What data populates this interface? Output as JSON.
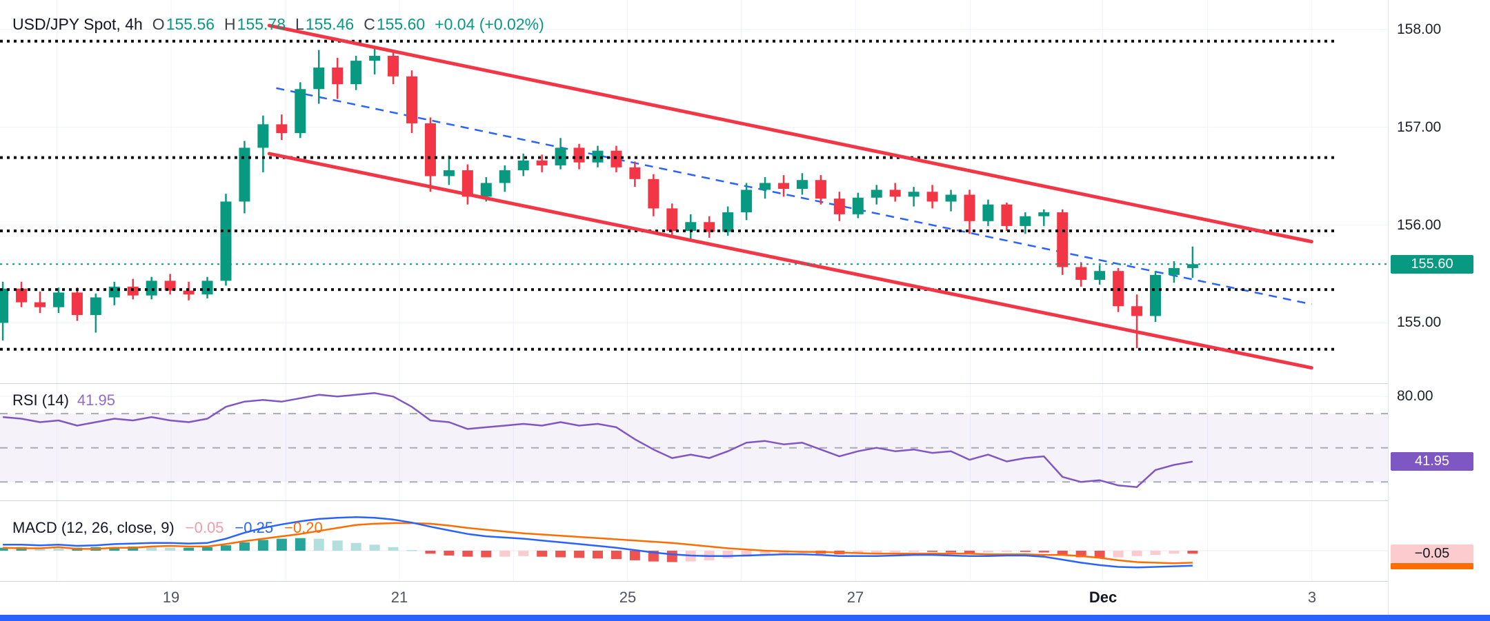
{
  "colors": {
    "up": "#089981",
    "down": "#f23645",
    "channel": "#f23645",
    "trendline": "#2962ff",
    "level_dots": "#0b0b0b",
    "current_price_line": "#089981",
    "rsi_line": "#7e57c2",
    "rsi_band_fill": "rgba(126,87,194,0.08)",
    "rsi_dash": "#a8abb5",
    "macd_line": "#2962ff",
    "signal_line": "#ff6d00",
    "hist_up_strong": "#26a69a",
    "hist_up_weak": "#b2dfdb",
    "hist_down_strong": "#ef5350",
    "hist_down_weak": "#fccbcd",
    "grid": "#f0f3fa",
    "bottom_bar": "#2962ff"
  },
  "price_panel": {
    "legend": {
      "symbol": "USD/JPY Spot, 4h",
      "o_label": "O",
      "o_value": "155.56",
      "h_label": "H",
      "h_value": "155.78",
      "l_label": "L",
      "l_value": "155.46",
      "c_label": "C",
      "c_value": "155.60",
      "change": "+0.04 (+0.02%)"
    },
    "badge": "155.60"
  },
  "rsi_panel": {
    "title": "RSI (14)",
    "value": "41.95",
    "axis_label": "80.00",
    "badge": "41.95"
  },
  "macd_panel": {
    "title": "MACD (12, 26, close, 9)",
    "hist_value": "−0.05",
    "macd_value": "−0.25",
    "signal_value": "−0.20",
    "badge": "−0.05"
  },
  "time_axis": {
    "labels": [
      {
        "text": "19",
        "xf": 0.1233
      },
      {
        "text": "21",
        "xf": 0.2877
      },
      {
        "text": "25",
        "xf": 0.4521
      },
      {
        "text": "27",
        "xf": 0.6164
      },
      {
        "text": "Dec",
        "xf": 0.7945,
        "bold": true
      },
      {
        "text": "3",
        "xf": 0.9452
      }
    ]
  },
  "chart_data": {
    "type": "candlestick",
    "symbol": "USD/JPY Spot",
    "timeframe": "4h",
    "y_axis": {
      "min": 154.39,
      "max": 158.3,
      "ticks": [
        158.0,
        157.0,
        156.0,
        155.0
      ]
    },
    "ohlc": [
      [
        155.0,
        155.42,
        154.82,
        155.35
      ],
      [
        155.35,
        155.42,
        155.16,
        155.21
      ],
      [
        155.21,
        155.32,
        155.1,
        155.16
      ],
      [
        155.16,
        155.36,
        155.1,
        155.31
      ],
      [
        155.31,
        155.36,
        155.02,
        155.08
      ],
      [
        155.08,
        155.3,
        154.9,
        155.26
      ],
      [
        155.26,
        155.42,
        155.18,
        155.37
      ],
      [
        155.37,
        155.45,
        155.24,
        155.28
      ],
      [
        155.28,
        155.47,
        155.24,
        155.43
      ],
      [
        155.43,
        155.5,
        155.29,
        155.33
      ],
      [
        155.33,
        155.42,
        155.23,
        155.29
      ],
      [
        155.29,
        155.47,
        155.25,
        155.43
      ],
      [
        155.43,
        156.32,
        155.38,
        156.24
      ],
      [
        156.24,
        156.86,
        156.12,
        156.79
      ],
      [
        156.79,
        157.12,
        156.54,
        157.03
      ],
      [
        157.03,
        157.13,
        156.87,
        156.94
      ],
      [
        156.94,
        157.46,
        156.89,
        157.39
      ],
      [
        157.39,
        157.79,
        157.24,
        157.61
      ],
      [
        157.61,
        157.71,
        157.29,
        157.44
      ],
      [
        157.44,
        157.73,
        157.38,
        157.68
      ],
      [
        157.68,
        157.81,
        157.54,
        157.73
      ],
      [
        157.73,
        157.79,
        157.44,
        157.52
      ],
      [
        157.52,
        157.58,
        156.94,
        157.04
      ],
      [
        157.04,
        157.1,
        156.34,
        156.5
      ],
      [
        156.5,
        156.71,
        156.41,
        156.56
      ],
      [
        156.56,
        156.62,
        156.21,
        156.29
      ],
      [
        156.29,
        156.49,
        156.24,
        156.43
      ],
      [
        156.43,
        156.61,
        156.34,
        156.56
      ],
      [
        156.56,
        156.73,
        156.5,
        156.66
      ],
      [
        156.66,
        156.72,
        156.54,
        156.61
      ],
      [
        156.61,
        156.89,
        156.57,
        156.79
      ],
      [
        156.79,
        156.83,
        156.57,
        156.64
      ],
      [
        156.64,
        156.81,
        156.59,
        156.76
      ],
      [
        156.76,
        156.81,
        156.54,
        156.59
      ],
      [
        156.59,
        156.65,
        156.39,
        156.47
      ],
      [
        156.47,
        156.52,
        156.09,
        156.17
      ],
      [
        156.17,
        156.22,
        155.87,
        155.94
      ],
      [
        155.94,
        156.11,
        155.84,
        156.03
      ],
      [
        156.03,
        156.09,
        155.87,
        155.93
      ],
      [
        155.93,
        156.19,
        155.89,
        156.13
      ],
      [
        156.13,
        156.43,
        156.05,
        156.36
      ],
      [
        156.36,
        156.49,
        156.27,
        156.43
      ],
      [
        156.43,
        156.51,
        156.29,
        156.37
      ],
      [
        156.37,
        156.53,
        156.31,
        156.46
      ],
      [
        156.46,
        156.51,
        156.21,
        156.27
      ],
      [
        156.27,
        156.34,
        156.04,
        156.11
      ],
      [
        156.11,
        156.33,
        156.07,
        156.28
      ],
      [
        156.28,
        156.41,
        156.21,
        156.36
      ],
      [
        156.36,
        156.43,
        156.24,
        156.29
      ],
      [
        156.29,
        156.39,
        156.19,
        156.34
      ],
      [
        156.34,
        156.41,
        156.17,
        156.24
      ],
      [
        156.24,
        156.36,
        156.14,
        156.31
      ],
      [
        156.31,
        156.36,
        155.91,
        156.04
      ],
      [
        156.04,
        156.26,
        155.99,
        156.21
      ],
      [
        156.21,
        156.23,
        155.94,
        155.99
      ],
      [
        155.99,
        156.13,
        155.91,
        156.09
      ],
      [
        156.09,
        156.16,
        155.99,
        156.13
      ],
      [
        156.13,
        156.16,
        155.49,
        155.57
      ],
      [
        155.57,
        155.62,
        155.37,
        155.44
      ],
      [
        155.44,
        155.59,
        155.39,
        155.53
      ],
      [
        155.53,
        155.56,
        155.11,
        155.17
      ],
      [
        155.17,
        155.29,
        154.74,
        155.07
      ],
      [
        155.07,
        155.53,
        155.01,
        155.49
      ],
      [
        155.49,
        155.63,
        155.41,
        155.56
      ],
      [
        155.56,
        155.78,
        155.46,
        155.6
      ]
    ],
    "overlays": {
      "levels": [
        157.88,
        156.69,
        155.94,
        155.34,
        154.73
      ],
      "current_price": 155.6,
      "channel_upper": {
        "x1f": 0.194,
        "p1": 158.04,
        "x2f": 0.945,
        "p2": 155.83
      },
      "channel_lower": {
        "x1f": 0.194,
        "p1": 156.73,
        "x2f": 0.945,
        "p2": 154.54
      },
      "trendline": {
        "x1f": 0.199,
        "p1": 157.4,
        "x2f": 0.945,
        "p2": 155.19
      }
    },
    "indicators": {
      "rsi": {
        "period": 14,
        "current": 41.95,
        "bands": [
          70,
          50,
          30
        ],
        "scale_ticks": [
          80
        ],
        "values": [
          68,
          67,
          65,
          66,
          63,
          65,
          67,
          66,
          68,
          66,
          65,
          67,
          74,
          77,
          78,
          77,
          79,
          81,
          80,
          81,
          82,
          80,
          74,
          66,
          65,
          61,
          62,
          63,
          64,
          63,
          65,
          63,
          64,
          62,
          55,
          49,
          44,
          46,
          44,
          48,
          53,
          54,
          52,
          53,
          49,
          45,
          48,
          50,
          48,
          49,
          47,
          48,
          43,
          46,
          42,
          44,
          45,
          33,
          30,
          31,
          28,
          27,
          37,
          40,
          41.95
        ]
      },
      "macd": {
        "params": [
          12,
          26,
          "close",
          9
        ],
        "macd": [
          0.1,
          0.1,
          0.09,
          0.1,
          0.08,
          0.09,
          0.11,
          0.12,
          0.13,
          0.13,
          0.12,
          0.13,
          0.2,
          0.3,
          0.38,
          0.44,
          0.49,
          0.53,
          0.55,
          0.56,
          0.55,
          0.52,
          0.47,
          0.4,
          0.34,
          0.28,
          0.24,
          0.22,
          0.2,
          0.17,
          0.14,
          0.11,
          0.08,
          0.05,
          0.01,
          -0.03,
          -0.06,
          -0.08,
          -0.09,
          -0.09,
          -0.08,
          -0.07,
          -0.06,
          -0.06,
          -0.07,
          -0.09,
          -0.09,
          -0.09,
          -0.08,
          -0.07,
          -0.07,
          -0.08,
          -0.09,
          -0.09,
          -0.08,
          -0.08,
          -0.1,
          -0.15,
          -0.2,
          -0.24,
          -0.27,
          -0.28,
          -0.27,
          -0.26,
          -0.25
        ],
        "signal": [
          0.05,
          0.04,
          0.04,
          0.06,
          0.03,
          0.03,
          0.05,
          0.05,
          0.07,
          0.08,
          0.07,
          0.07,
          0.11,
          0.16,
          0.2,
          0.24,
          0.28,
          0.33,
          0.38,
          0.43,
          0.45,
          0.46,
          0.46,
          0.45,
          0.42,
          0.38,
          0.35,
          0.32,
          0.29,
          0.27,
          0.25,
          0.23,
          0.21,
          0.19,
          0.17,
          0.15,
          0.13,
          0.1,
          0.07,
          0.04,
          0.02,
          0.0,
          -0.01,
          -0.02,
          -0.02,
          -0.03,
          -0.04,
          -0.05,
          -0.05,
          -0.05,
          -0.05,
          -0.05,
          -0.05,
          -0.06,
          -0.06,
          -0.06,
          -0.07,
          -0.07,
          -0.09,
          -0.12,
          -0.16,
          -0.19,
          -0.2,
          -0.21,
          -0.2
        ],
        "hist": [
          0.05,
          0.06,
          0.05,
          0.04,
          0.05,
          0.06,
          0.06,
          0.07,
          0.06,
          0.05,
          0.05,
          0.06,
          0.09,
          0.14,
          0.18,
          0.2,
          0.21,
          0.2,
          0.17,
          0.13,
          0.1,
          0.06,
          0.01,
          -0.05,
          -0.08,
          -0.1,
          -0.11,
          -0.1,
          -0.09,
          -0.1,
          -0.11,
          -0.12,
          -0.13,
          -0.14,
          -0.16,
          -0.18,
          -0.19,
          -0.18,
          -0.16,
          -0.13,
          -0.1,
          -0.07,
          -0.05,
          -0.04,
          -0.05,
          -0.06,
          -0.05,
          -0.04,
          -0.03,
          -0.02,
          -0.02,
          -0.03,
          -0.04,
          -0.03,
          -0.02,
          -0.02,
          -0.03,
          -0.08,
          -0.11,
          -0.12,
          -0.11,
          -0.09,
          -0.07,
          -0.05,
          -0.05
        ]
      }
    },
    "grid": {
      "vertical_fracs": [
        0.041,
        0.1233,
        0.206,
        0.2877,
        0.37,
        0.4521,
        0.534,
        0.6164,
        0.699,
        0.7945,
        0.87,
        0.9452
      ]
    }
  }
}
